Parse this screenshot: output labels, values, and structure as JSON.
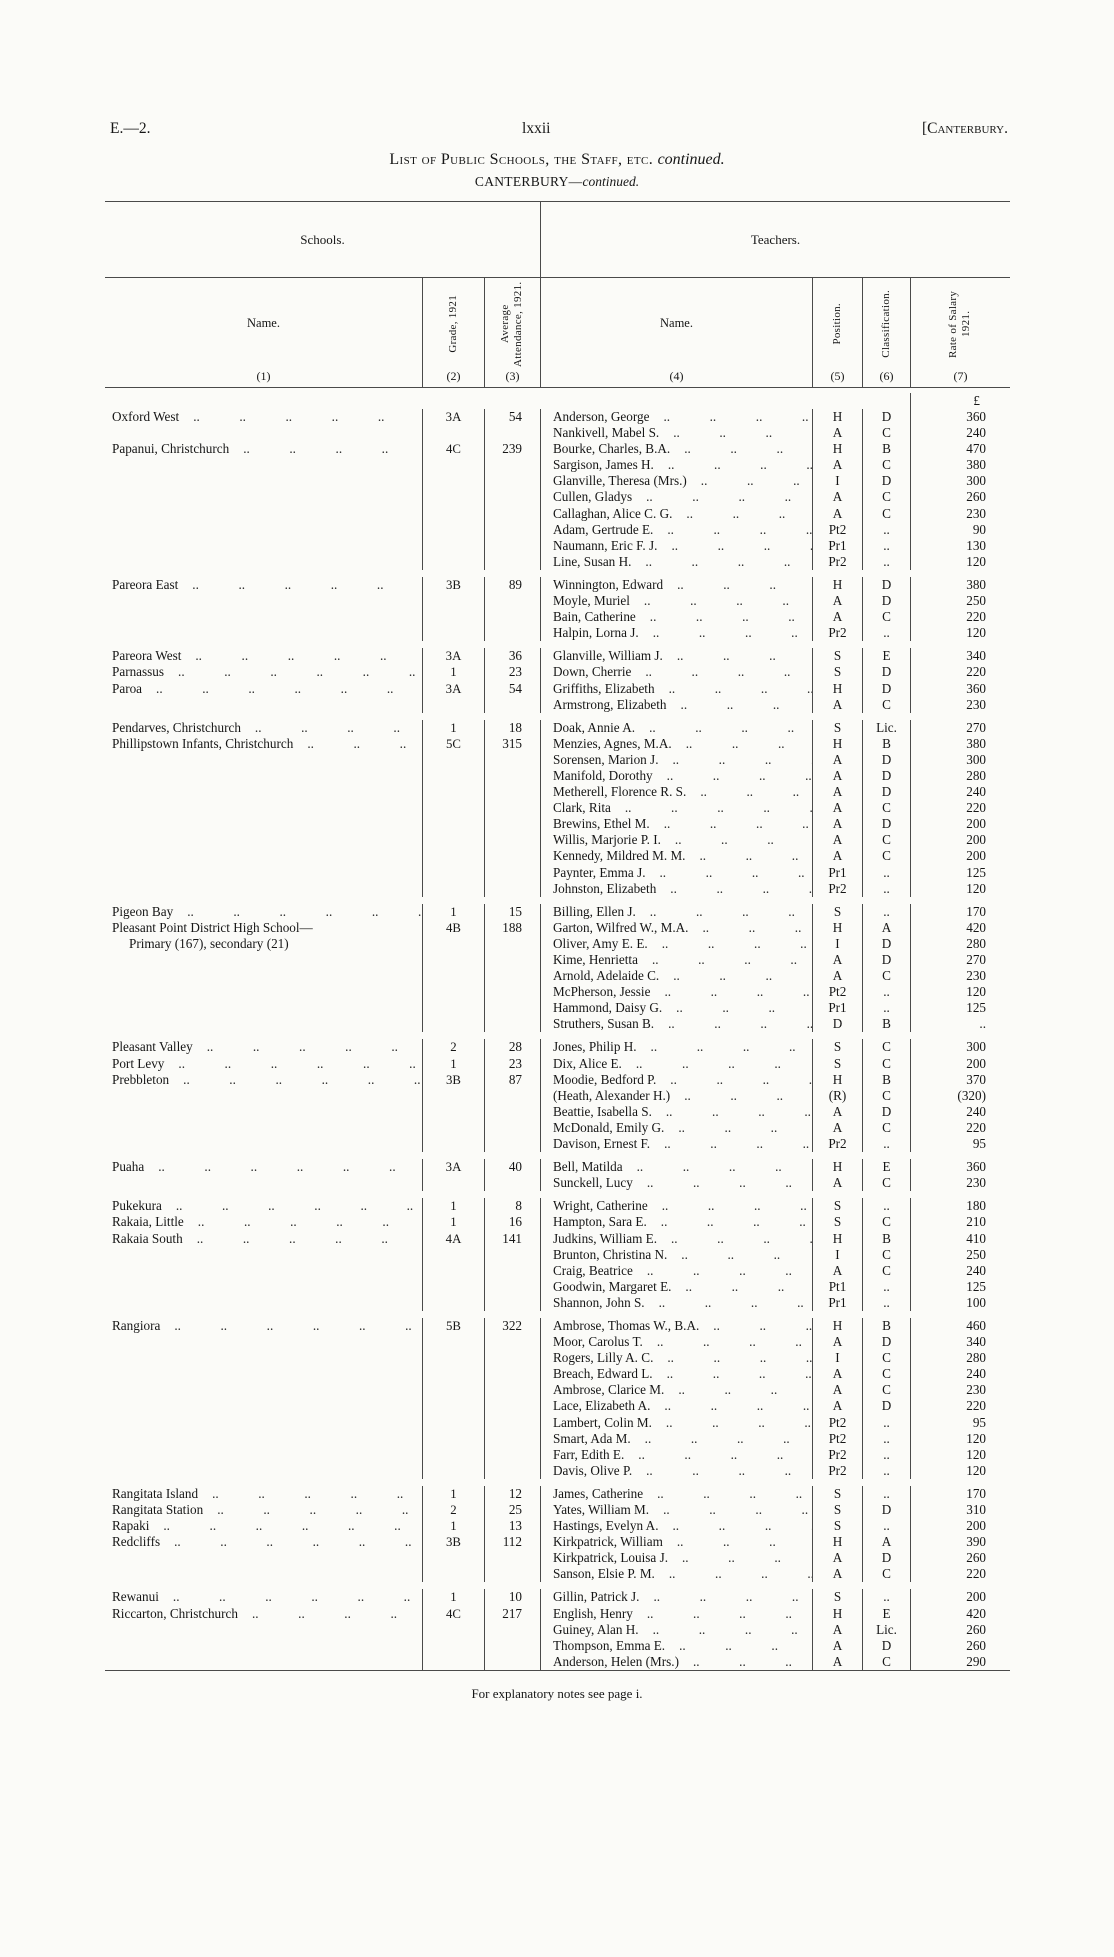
{
  "header": {
    "doc_ref": "E.—2.",
    "page_number": "lxxii",
    "region": "[Canterbury."
  },
  "title": {
    "main": "List of Public Schools, the Staff, etc.",
    "continued": "continued."
  },
  "subtitle": {
    "region": "CANTERBURY—",
    "continued": "continued."
  },
  "table": {
    "group_headers": {
      "schools": "Schools.",
      "teachers": "Teachers."
    },
    "columns": {
      "school_name": {
        "label": "Name.",
        "num": "(1)"
      },
      "grade": {
        "label": "Grade, 1921",
        "num": "(2)"
      },
      "attendance": {
        "label": "Average Attendance, 1921.",
        "num": "(3)"
      },
      "teacher_name": {
        "label": "Name.",
        "num": "(4)"
      },
      "position": {
        "label": "Position.",
        "num": "(5)"
      },
      "classification": {
        "label": "Classification.",
        "num": "(6)"
      },
      "salary": {
        "label": "Rate of Salary 1921.",
        "num": "(7)"
      }
    },
    "currency_symbol": "£",
    "rows": [
      {
        "s": "Oxford West",
        "g": "3A",
        "a": "54",
        "t": "Anderson, George",
        "p": "H",
        "c": "D",
        "r": "360"
      },
      {
        "t": "Nankivell, Mabel S.",
        "p": "A",
        "c": "C",
        "r": "240"
      },
      {
        "s": "Papanui, Christchurch",
        "g": "4C",
        "a": "239",
        "t": "Bourke, Charles, B.A.",
        "p": "H",
        "c": "B",
        "r": "470"
      },
      {
        "t": "Sargison, James H.",
        "p": "A",
        "c": "C",
        "r": "380"
      },
      {
        "t": "Glanville, Theresa (Mrs.)",
        "p": "I",
        "c": "D",
        "r": "300"
      },
      {
        "t": "Cullen, Gladys",
        "p": "A",
        "c": "C",
        "r": "260"
      },
      {
        "t": "Callaghan, Alice C. G.",
        "p": "A",
        "c": "C",
        "r": "230"
      },
      {
        "t": "Adam, Gertrude E.",
        "p": "Pt2",
        "c": "..",
        "r": "90"
      },
      {
        "t": "Naumann, Eric F. J.",
        "p": "Pr1",
        "c": "..",
        "r": "130"
      },
      {
        "t": "Line, Susan H.",
        "p": "Pr2",
        "c": "..",
        "r": "120"
      },
      {
        "s": "Pareora East",
        "g": "3B",
        "a": "89",
        "t": "Winnington, Edward",
        "p": "H",
        "c": "D",
        "r": "380",
        "gap": true
      },
      {
        "t": "Moyle, Muriel",
        "p": "A",
        "c": "D",
        "r": "250"
      },
      {
        "t": "Bain, Catherine",
        "p": "A",
        "c": "C",
        "r": "220"
      },
      {
        "t": "Halpin, Lorna J.",
        "p": "Pr2",
        "c": "..",
        "r": "120"
      },
      {
        "s": "Pareora West",
        "g": "3A",
        "a": "36",
        "t": "Glanville, William J.",
        "p": "S",
        "c": "E",
        "r": "340",
        "gap": true
      },
      {
        "s": "Parnassus",
        "g": "1",
        "a": "23",
        "t": "Down, Cherrie",
        "p": "S",
        "c": "D",
        "r": "220"
      },
      {
        "s": "Paroa",
        "g": "3A",
        "a": "54",
        "t": "Griffiths, Elizabeth",
        "p": "H",
        "c": "D",
        "r": "360"
      },
      {
        "t": "Armstrong, Elizabeth",
        "p": "A",
        "c": "C",
        "r": "230"
      },
      {
        "s": "Pendarves, Christchurch",
        "g": "1",
        "a": "18",
        "t": "Doak, Annie A.",
        "p": "S",
        "c": "Lic.",
        "r": "270",
        "gap": true
      },
      {
        "s": "Phillipstown Infants, Christchurch",
        "g": "5C",
        "a": "315",
        "t": "Menzies, Agnes, M.A.",
        "p": "H",
        "c": "B",
        "r": "380"
      },
      {
        "t": "Sorensen, Marion J.",
        "p": "A",
        "c": "D",
        "r": "300"
      },
      {
        "t": "Manifold, Dorothy",
        "p": "A",
        "c": "D",
        "r": "280"
      },
      {
        "t": "Metherell, Florence R. S.",
        "p": "A",
        "c": "D",
        "r": "240"
      },
      {
        "t": "Clark, Rita",
        "p": "A",
        "c": "C",
        "r": "220"
      },
      {
        "t": "Brewins, Ethel M.",
        "p": "A",
        "c": "D",
        "r": "200"
      },
      {
        "t": "Willis, Marjorie P. I.",
        "p": "A",
        "c": "C",
        "r": "200"
      },
      {
        "t": "Kennedy, Mildred M. M.",
        "p": "A",
        "c": "C",
        "r": "200"
      },
      {
        "t": "Paynter, Emma J.",
        "p": "Pr1",
        "c": "..",
        "r": "125"
      },
      {
        "t": "Johnston, Elizabeth",
        "p": "Pr2",
        "c": "..",
        "r": "120"
      },
      {
        "s": "Pigeon Bay",
        "g": "1",
        "a": "15",
        "t": "Billing, Ellen J.",
        "p": "S",
        "c": "..",
        "r": "170",
        "gap": true
      },
      {
        "s": "Pleasant Point District High School—",
        "nodots": true,
        "g": "4B",
        "a": "188",
        "t": "Garton, Wilfred W., M.A.",
        "p": "H",
        "c": "A",
        "r": "420"
      },
      {
        "s2": "Primary (167), secondary (21)",
        "t": "Oliver, Amy E. E.",
        "p": "I",
        "c": "D",
        "r": "280"
      },
      {
        "t": "Kime, Henrietta",
        "p": "A",
        "c": "D",
        "r": "270"
      },
      {
        "t": "Arnold, Adelaide C.",
        "p": "A",
        "c": "C",
        "r": "230"
      },
      {
        "t": "McPherson, Jessie",
        "p": "Pt2",
        "c": "..",
        "r": "120"
      },
      {
        "t": "Hammond, Daisy G.",
        "p": "Pr1",
        "c": "..",
        "r": "125"
      },
      {
        "t": "Struthers, Susan B.",
        "p": "D",
        "c": "B",
        "r": ".."
      },
      {
        "s": "Pleasant Valley",
        "g": "2",
        "a": "28",
        "t": "Jones, Philip H.",
        "p": "S",
        "c": "C",
        "r": "300",
        "gap": true
      },
      {
        "s": "Port Levy",
        "g": "1",
        "a": "23",
        "t": "Dix, Alice E.",
        "p": "S",
        "c": "C",
        "r": "200"
      },
      {
        "s": "Prebbleton",
        "g": "3B",
        "a": "87",
        "t": "Moodie, Bedford P.",
        "p": "H",
        "c": "B",
        "r": "370"
      },
      {
        "t": "(Heath, Alexander H.)",
        "p": "(R)",
        "c": "C",
        "r": "(320)"
      },
      {
        "t": "Beattie, Isabella S.",
        "p": "A",
        "c": "D",
        "r": "240"
      },
      {
        "t": "McDonald, Emily G.",
        "p": "A",
        "c": "C",
        "r": "220"
      },
      {
        "t": "Davison, Ernest F.",
        "p": "Pr2",
        "c": "..",
        "r": "95"
      },
      {
        "s": "Puaha",
        "g": "3A",
        "a": "40",
        "t": "Bell, Matilda",
        "p": "H",
        "c": "E",
        "r": "360",
        "gap": true
      },
      {
        "t": "Sunckell, Lucy",
        "p": "A",
        "c": "C",
        "r": "230"
      },
      {
        "s": "Pukekura",
        "g": "1",
        "a": "8",
        "t": "Wright, Catherine",
        "p": "S",
        "c": "..",
        "r": "180",
        "gap": true
      },
      {
        "s": "Rakaia, Little",
        "g": "1",
        "a": "16",
        "t": "Hampton, Sara E.",
        "p": "S",
        "c": "C",
        "r": "210"
      },
      {
        "s": "Rakaia South",
        "g": "4A",
        "a": "141",
        "t": "Judkins, William E.",
        "p": "H",
        "c": "B",
        "r": "410"
      },
      {
        "t": "Brunton, Christina N.",
        "p": "I",
        "c": "C",
        "r": "250"
      },
      {
        "t": "Craig, Beatrice",
        "p": "A",
        "c": "C",
        "r": "240"
      },
      {
        "t": "Goodwin, Margaret E.",
        "p": "Pt1",
        "c": "..",
        "r": "125"
      },
      {
        "t": "Shannon, John S.",
        "p": "Pr1",
        "c": "..",
        "r": "100"
      },
      {
        "s": "Rangiora",
        "g": "5B",
        "a": "322",
        "t": "Ambrose, Thomas W., B.A.",
        "p": "H",
        "c": "B",
        "r": "460",
        "gap": true
      },
      {
        "t": "Moor, Carolus T.",
        "p": "A",
        "c": "D",
        "r": "340"
      },
      {
        "t": "Rogers, Lilly A. C.",
        "p": "I",
        "c": "C",
        "r": "280"
      },
      {
        "t": "Breach, Edward L.",
        "p": "A",
        "c": "C",
        "r": "240"
      },
      {
        "t": "Ambrose, Clarice M.",
        "p": "A",
        "c": "C",
        "r": "230"
      },
      {
        "t": "Lace, Elizabeth A.",
        "p": "A",
        "c": "D",
        "r": "220"
      },
      {
        "t": "Lambert, Colin M.",
        "p": "Pt2",
        "c": "..",
        "r": "95"
      },
      {
        "t": "Smart, Ada M.",
        "p": "Pt2",
        "c": "..",
        "r": "120"
      },
      {
        "t": "Farr, Edith E.",
        "p": "Pr2",
        "c": "..",
        "r": "120"
      },
      {
        "t": "Davis, Olive P.",
        "p": "Pr2",
        "c": "..",
        "r": "120"
      },
      {
        "s": "Rangitata Island",
        "g": "1",
        "a": "12",
        "t": "James, Catherine",
        "p": "S",
        "c": "..",
        "r": "170",
        "gap": true
      },
      {
        "s": "Rangitata Station",
        "g": "2",
        "a": "25",
        "t": "Yates, William M.",
        "p": "S",
        "c": "D",
        "r": "310"
      },
      {
        "s": "Rapaki",
        "g": "1",
        "a": "13",
        "t": "Hastings, Evelyn A.",
        "p": "S",
        "c": "..",
        "r": "200"
      },
      {
        "s": "Redcliffs",
        "g": "3B",
        "a": "112",
        "t": "Kirkpatrick, William",
        "p": "H",
        "c": "A",
        "r": "390"
      },
      {
        "t": "Kirkpatrick, Louisa J.",
        "p": "A",
        "c": "D",
        "r": "260"
      },
      {
        "t": "Sanson, Elsie P. M.",
        "p": "A",
        "c": "C",
        "r": "220"
      },
      {
        "s": "Rewanui",
        "g": "1",
        "a": "10",
        "t": "Gillin, Patrick J.",
        "p": "S",
        "c": "..",
        "r": "200",
        "gap": true
      },
      {
        "s": "Riccarton, Christchurch",
        "g": "4C",
        "a": "217",
        "t": "English, Henry",
        "p": "H",
        "c": "E",
        "r": "420"
      },
      {
        "t": "Guiney, Alan H.",
        "p": "A",
        "c": "Lic.",
        "r": "260"
      },
      {
        "t": "Thompson, Emma E.",
        "p": "A",
        "c": "D",
        "r": "260"
      },
      {
        "t": "Anderson, Helen (Mrs.)",
        "p": "A",
        "c": "C",
        "r": "290"
      }
    ]
  },
  "footer": {
    "note": "For explanatory notes see page i."
  }
}
